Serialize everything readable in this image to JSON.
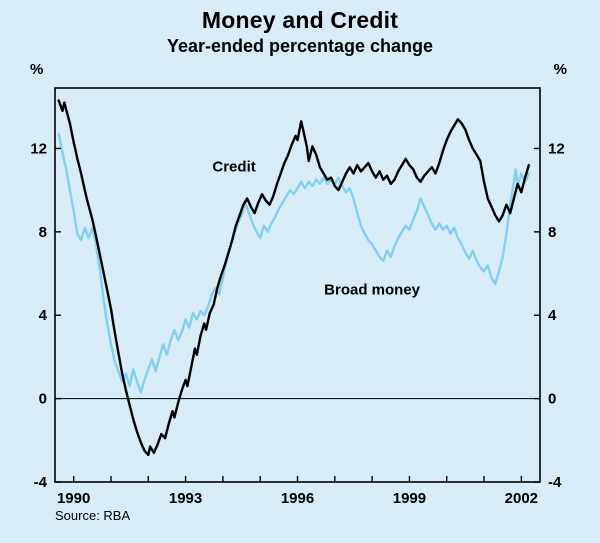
{
  "chart_data": {
    "type": "line",
    "title": "Money and Credit",
    "subtitle": "Year-ended percentage change",
    "y_unit": "%",
    "source": "Source: RBA",
    "xlim": [
      1989.5,
      2002.5
    ],
    "ylim": [
      -4,
      14.9
    ],
    "yticks": [
      -4,
      0,
      4,
      8,
      12
    ],
    "xticks_minor": [
      1990,
      1991,
      1992,
      1993,
      1994,
      1995,
      1996,
      1997,
      1998,
      1999,
      2000,
      2001,
      2002
    ],
    "xticks_labeled": [
      1990,
      1993,
      1996,
      1999,
      2002
    ],
    "grid": false,
    "zero_line": true,
    "legend_position": "none",
    "frame_color": "#000000",
    "annotations": [
      {
        "text": "Credit",
        "x": 1994.3,
        "y": 10.9,
        "color": "#000000"
      },
      {
        "text": "Broad money",
        "x": 1998.0,
        "y": 5.0,
        "color": "#000000"
      }
    ],
    "series": [
      {
        "name": "Broad money",
        "color": "#84cfee",
        "width": 2.4,
        "points": [
          [
            1989.6,
            12.7
          ],
          [
            1989.7,
            11.8
          ],
          [
            1989.8,
            11.0
          ],
          [
            1989.9,
            10.0
          ],
          [
            1990.0,
            9.0
          ],
          [
            1990.1,
            7.9
          ],
          [
            1990.2,
            7.6
          ],
          [
            1990.3,
            8.2
          ],
          [
            1990.4,
            7.7
          ],
          [
            1990.5,
            8.2
          ],
          [
            1990.6,
            7.4
          ],
          [
            1990.7,
            6.2
          ],
          [
            1990.8,
            4.8
          ],
          [
            1990.9,
            3.6
          ],
          [
            1991.0,
            2.6
          ],
          [
            1991.1,
            1.8
          ],
          [
            1991.2,
            1.3
          ],
          [
            1991.3,
            0.8
          ],
          [
            1991.4,
            1.2
          ],
          [
            1991.5,
            0.6
          ],
          [
            1991.6,
            1.4
          ],
          [
            1991.7,
            0.8
          ],
          [
            1991.8,
            0.3
          ],
          [
            1991.9,
            0.9
          ],
          [
            1992.0,
            1.4
          ],
          [
            1992.1,
            1.9
          ],
          [
            1992.2,
            1.3
          ],
          [
            1992.3,
            2.0
          ],
          [
            1992.4,
            2.6
          ],
          [
            1992.5,
            2.1
          ],
          [
            1992.6,
            2.8
          ],
          [
            1992.7,
            3.3
          ],
          [
            1992.8,
            2.8
          ],
          [
            1992.9,
            3.2
          ],
          [
            1993.0,
            3.8
          ],
          [
            1993.1,
            3.4
          ],
          [
            1993.2,
            4.1
          ],
          [
            1993.3,
            3.8
          ],
          [
            1993.4,
            4.2
          ],
          [
            1993.5,
            4.0
          ],
          [
            1993.6,
            4.4
          ],
          [
            1993.7,
            5.0
          ],
          [
            1993.8,
            5.3
          ],
          [
            1993.9,
            5.0
          ],
          [
            1994.0,
            5.8
          ],
          [
            1994.1,
            6.6
          ],
          [
            1994.2,
            7.3
          ],
          [
            1994.3,
            7.9
          ],
          [
            1994.4,
            8.4
          ],
          [
            1994.5,
            8.8
          ],
          [
            1994.6,
            9.4
          ],
          [
            1994.7,
            8.9
          ],
          [
            1994.8,
            8.4
          ],
          [
            1994.9,
            8.0
          ],
          [
            1995.0,
            7.7
          ],
          [
            1995.1,
            8.3
          ],
          [
            1995.2,
            8.0
          ],
          [
            1995.3,
            8.4
          ],
          [
            1995.4,
            8.7
          ],
          [
            1995.5,
            9.1
          ],
          [
            1995.6,
            9.4
          ],
          [
            1995.7,
            9.7
          ],
          [
            1995.8,
            10.0
          ],
          [
            1995.9,
            9.8
          ],
          [
            1996.0,
            10.1
          ],
          [
            1996.1,
            10.4
          ],
          [
            1996.2,
            10.1
          ],
          [
            1996.3,
            10.4
          ],
          [
            1996.4,
            10.2
          ],
          [
            1996.5,
            10.5
          ],
          [
            1996.6,
            10.3
          ],
          [
            1996.7,
            10.6
          ],
          [
            1996.8,
            10.3
          ],
          [
            1996.9,
            10.5
          ],
          [
            1997.0,
            10.3
          ],
          [
            1997.1,
            10.6
          ],
          [
            1997.2,
            10.2
          ],
          [
            1997.3,
            9.9
          ],
          [
            1997.4,
            10.1
          ],
          [
            1997.5,
            9.6
          ],
          [
            1997.6,
            8.9
          ],
          [
            1997.7,
            8.3
          ],
          [
            1997.8,
            7.9
          ],
          [
            1997.9,
            7.6
          ],
          [
            1998.0,
            7.4
          ],
          [
            1998.1,
            7.1
          ],
          [
            1998.2,
            6.8
          ],
          [
            1998.3,
            6.6
          ],
          [
            1998.4,
            7.1
          ],
          [
            1998.5,
            6.8
          ],
          [
            1998.6,
            7.3
          ],
          [
            1998.7,
            7.7
          ],
          [
            1998.8,
            8.0
          ],
          [
            1998.9,
            8.3
          ],
          [
            1999.0,
            8.1
          ],
          [
            1999.1,
            8.6
          ],
          [
            1999.2,
            9.0
          ],
          [
            1999.3,
            9.6
          ],
          [
            1999.4,
            9.2
          ],
          [
            1999.5,
            8.8
          ],
          [
            1999.6,
            8.4
          ],
          [
            1999.7,
            8.1
          ],
          [
            1999.8,
            8.4
          ],
          [
            1999.9,
            8.1
          ],
          [
            2000.0,
            8.3
          ],
          [
            2000.1,
            7.9
          ],
          [
            2000.2,
            8.2
          ],
          [
            2000.3,
            7.7
          ],
          [
            2000.4,
            7.4
          ],
          [
            2000.5,
            7.0
          ],
          [
            2000.6,
            6.7
          ],
          [
            2000.7,
            7.1
          ],
          [
            2000.8,
            6.6
          ],
          [
            2000.9,
            6.3
          ],
          [
            2001.0,
            6.1
          ],
          [
            2001.1,
            6.4
          ],
          [
            2001.2,
            5.8
          ],
          [
            2001.3,
            5.5
          ],
          [
            2001.4,
            6.1
          ],
          [
            2001.5,
            6.8
          ],
          [
            2001.6,
            7.9
          ],
          [
            2001.7,
            9.3
          ],
          [
            2001.8,
            10.4
          ],
          [
            2001.85,
            11.0
          ],
          [
            2001.9,
            10.2
          ],
          [
            2002.0,
            10.8
          ],
          [
            2002.1,
            10.4
          ],
          [
            2002.2,
            10.8
          ]
        ]
      },
      {
        "name": "Credit",
        "color": "#000000",
        "width": 2.4,
        "points": [
          [
            1989.6,
            14.3
          ],
          [
            1989.7,
            13.8
          ],
          [
            1989.75,
            14.2
          ],
          [
            1989.9,
            13.2
          ],
          [
            1990.0,
            12.3
          ],
          [
            1990.1,
            11.5
          ],
          [
            1990.2,
            10.8
          ],
          [
            1990.35,
            9.6
          ],
          [
            1990.5,
            8.6
          ],
          [
            1990.6,
            7.8
          ],
          [
            1990.75,
            6.5
          ],
          [
            1990.9,
            5.2
          ],
          [
            1991.0,
            4.3
          ],
          [
            1991.1,
            3.2
          ],
          [
            1991.2,
            2.2
          ],
          [
            1991.3,
            1.2
          ],
          [
            1991.4,
            0.4
          ],
          [
            1991.5,
            -0.3
          ],
          [
            1991.6,
            -1.0
          ],
          [
            1991.7,
            -1.6
          ],
          [
            1991.8,
            -2.1
          ],
          [
            1991.9,
            -2.5
          ],
          [
            1992.0,
            -2.7
          ],
          [
            1992.05,
            -2.3
          ],
          [
            1992.15,
            -2.6
          ],
          [
            1992.25,
            -2.2
          ],
          [
            1992.35,
            -1.7
          ],
          [
            1992.45,
            -1.9
          ],
          [
            1992.55,
            -1.2
          ],
          [
            1992.65,
            -0.6
          ],
          [
            1992.7,
            -0.9
          ],
          [
            1992.8,
            -0.2
          ],
          [
            1992.9,
            0.4
          ],
          [
            1993.0,
            0.9
          ],
          [
            1993.05,
            0.6
          ],
          [
            1993.15,
            1.5
          ],
          [
            1993.25,
            2.4
          ],
          [
            1993.3,
            2.1
          ],
          [
            1993.4,
            3.0
          ],
          [
            1993.5,
            3.6
          ],
          [
            1993.55,
            3.3
          ],
          [
            1993.65,
            4.1
          ],
          [
            1993.75,
            4.5
          ],
          [
            1993.85,
            5.3
          ],
          [
            1993.95,
            5.9
          ],
          [
            1994.05,
            6.4
          ],
          [
            1994.15,
            7.0
          ],
          [
            1994.25,
            7.6
          ],
          [
            1994.35,
            8.3
          ],
          [
            1994.45,
            8.8
          ],
          [
            1994.55,
            9.3
          ],
          [
            1994.65,
            9.6
          ],
          [
            1994.75,
            9.2
          ],
          [
            1994.85,
            8.9
          ],
          [
            1994.95,
            9.4
          ],
          [
            1995.05,
            9.8
          ],
          [
            1995.15,
            9.5
          ],
          [
            1995.25,
            9.3
          ],
          [
            1995.35,
            9.7
          ],
          [
            1995.45,
            10.3
          ],
          [
            1995.55,
            10.8
          ],
          [
            1995.65,
            11.3
          ],
          [
            1995.75,
            11.7
          ],
          [
            1995.85,
            12.2
          ],
          [
            1995.95,
            12.6
          ],
          [
            1996.0,
            12.4
          ],
          [
            1996.1,
            13.3
          ],
          [
            1996.15,
            12.9
          ],
          [
            1996.25,
            12.1
          ],
          [
            1996.3,
            11.4
          ],
          [
            1996.4,
            12.1
          ],
          [
            1996.5,
            11.7
          ],
          [
            1996.6,
            11.1
          ],
          [
            1996.7,
            10.8
          ],
          [
            1996.8,
            10.5
          ],
          [
            1996.9,
            10.6
          ],
          [
            1997.0,
            10.2
          ],
          [
            1997.1,
            10.0
          ],
          [
            1997.2,
            10.4
          ],
          [
            1997.3,
            10.8
          ],
          [
            1997.4,
            11.1
          ],
          [
            1997.5,
            10.8
          ],
          [
            1997.6,
            11.2
          ],
          [
            1997.7,
            10.9
          ],
          [
            1997.8,
            11.1
          ],
          [
            1997.9,
            11.3
          ],
          [
            1998.0,
            10.9
          ],
          [
            1998.1,
            10.6
          ],
          [
            1998.2,
            10.9
          ],
          [
            1998.3,
            10.5
          ],
          [
            1998.4,
            10.7
          ],
          [
            1998.5,
            10.3
          ],
          [
            1998.6,
            10.5
          ],
          [
            1998.7,
            10.9
          ],
          [
            1998.8,
            11.2
          ],
          [
            1998.9,
            11.5
          ],
          [
            1999.0,
            11.2
          ],
          [
            1999.1,
            11.0
          ],
          [
            1999.2,
            10.6
          ],
          [
            1999.3,
            10.4
          ],
          [
            1999.4,
            10.7
          ],
          [
            1999.5,
            10.9
          ],
          [
            1999.6,
            11.1
          ],
          [
            1999.7,
            10.8
          ],
          [
            1999.8,
            11.3
          ],
          [
            1999.9,
            11.9
          ],
          [
            2000.0,
            12.4
          ],
          [
            2000.1,
            12.8
          ],
          [
            2000.2,
            13.1
          ],
          [
            2000.3,
            13.4
          ],
          [
            2000.4,
            13.2
          ],
          [
            2000.5,
            12.9
          ],
          [
            2000.6,
            12.4
          ],
          [
            2000.7,
            12.0
          ],
          [
            2000.8,
            11.7
          ],
          [
            2000.9,
            11.4
          ],
          [
            2001.0,
            10.4
          ],
          [
            2001.1,
            9.6
          ],
          [
            2001.2,
            9.2
          ],
          [
            2001.3,
            8.8
          ],
          [
            2001.4,
            8.5
          ],
          [
            2001.5,
            8.8
          ],
          [
            2001.6,
            9.3
          ],
          [
            2001.7,
            8.9
          ],
          [
            2001.8,
            9.6
          ],
          [
            2001.9,
            10.3
          ],
          [
            2002.0,
            9.9
          ],
          [
            2002.1,
            10.6
          ],
          [
            2002.2,
            11.2
          ]
        ]
      }
    ]
  }
}
